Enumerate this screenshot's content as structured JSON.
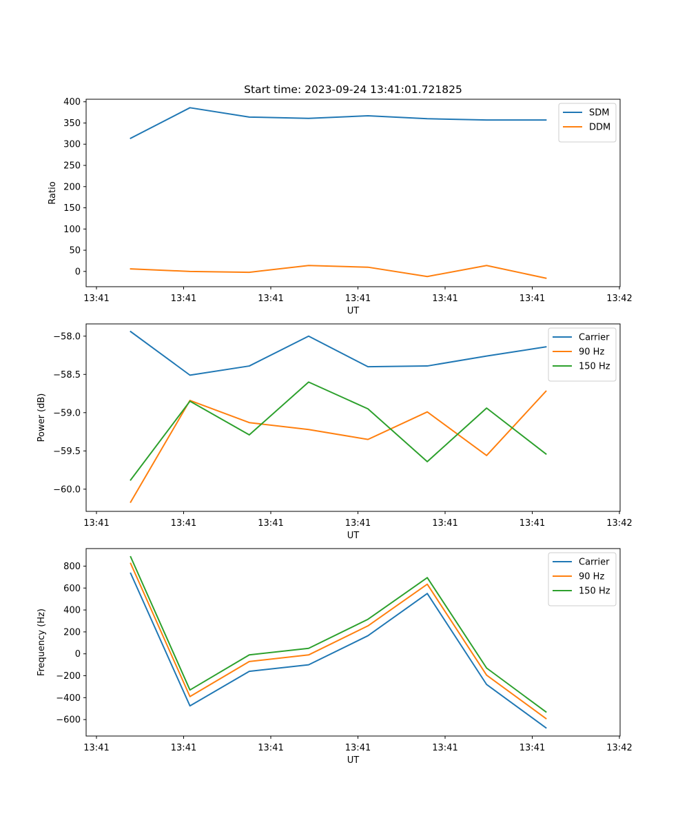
{
  "chart_data": [
    {
      "type": "line",
      "title": "Start time: 2023-09-24 13:41:01.721825",
      "xlabel": "UT",
      "ylabel": "Ratio",
      "x_tick_labels": [
        "13:41",
        "13:41",
        "13:41",
        "13:41",
        "13:41",
        "13:41",
        "13:42"
      ],
      "x": [
        1,
        2,
        3,
        4,
        5,
        6,
        7,
        8
      ],
      "xlim": [
        0.25,
        9.25
      ],
      "y_ticks": [
        0,
        50,
        100,
        150,
        200,
        250,
        300,
        350,
        400
      ],
      "ylim": [
        -36,
        406
      ],
      "legend_position": "top-right",
      "series": [
        {
          "name": "SDM",
          "color": "#1f77b4",
          "values": [
            314,
            386,
            364,
            361,
            367,
            360,
            357,
            357
          ]
        },
        {
          "name": "DDM",
          "color": "#ff7f0e",
          "values": [
            6,
            0,
            -2,
            14,
            10,
            -12,
            14,
            -16
          ]
        }
      ]
    },
    {
      "type": "line",
      "title": "",
      "xlabel": "UT",
      "ylabel": "Power (dB)",
      "x_tick_labels": [
        "13:41",
        "13:41",
        "13:41",
        "13:41",
        "13:41",
        "13:41",
        "13:42"
      ],
      "x": [
        1,
        2,
        3,
        4,
        5,
        6,
        7,
        8
      ],
      "xlim": [
        0.25,
        9.25
      ],
      "y_ticks": [
        -60.0,
        -59.5,
        -59.0,
        -58.5,
        -58.0
      ],
      "y_tick_labels": [
        "−60.0",
        "−59.5",
        "−59.0",
        "−58.5",
        "−58.0"
      ],
      "ylim": [
        -60.29,
        -57.84
      ],
      "legend_position": "top-right",
      "series": [
        {
          "name": "Carrier",
          "color": "#1f77b4",
          "values": [
            -57.94,
            -58.51,
            -58.39,
            -58.0,
            -58.4,
            -58.39,
            -58.26,
            -58.14
          ]
        },
        {
          "name": "90 Hz",
          "color": "#ff7f0e",
          "values": [
            -60.17,
            -58.84,
            -59.13,
            -59.22,
            -59.35,
            -58.99,
            -59.56,
            -58.72
          ]
        },
        {
          "name": "150 Hz",
          "color": "#2ca02c",
          "values": [
            -59.88,
            -58.85,
            -59.29,
            -58.6,
            -58.95,
            -59.64,
            -58.94,
            -59.54
          ]
        }
      ]
    },
    {
      "type": "line",
      "title": "",
      "xlabel": "UT",
      "ylabel": "Frequency (Hz)",
      "x_tick_labels": [
        "13:41",
        "13:41",
        "13:41",
        "13:41",
        "13:41",
        "13:41",
        "13:42"
      ],
      "x": [
        1,
        2,
        3,
        4,
        5,
        6,
        7,
        8
      ],
      "xlim": [
        0.25,
        9.25
      ],
      "y_ticks": [
        -600,
        -400,
        -200,
        0,
        200,
        400,
        600,
        800
      ],
      "y_tick_labels": [
        "−600",
        "−400",
        "−200",
        "0",
        "200",
        "400",
        "600",
        "800"
      ],
      "ylim": [
        -750,
        960
      ],
      "legend_position": "top-right",
      "series": [
        {
          "name": "Carrier",
          "color": "#1f77b4",
          "values": [
            735,
            -475,
            -160,
            -100,
            165,
            550,
            -280,
            -675
          ]
        },
        {
          "name": "90 Hz",
          "color": "#ff7f0e",
          "values": [
            825,
            -390,
            -70,
            -10,
            255,
            635,
            -195,
            -590
          ]
        },
        {
          "name": "150 Hz",
          "color": "#2ca02c",
          "values": [
            885,
            -330,
            -10,
            50,
            315,
            695,
            -130,
            -530
          ]
        }
      ]
    }
  ]
}
